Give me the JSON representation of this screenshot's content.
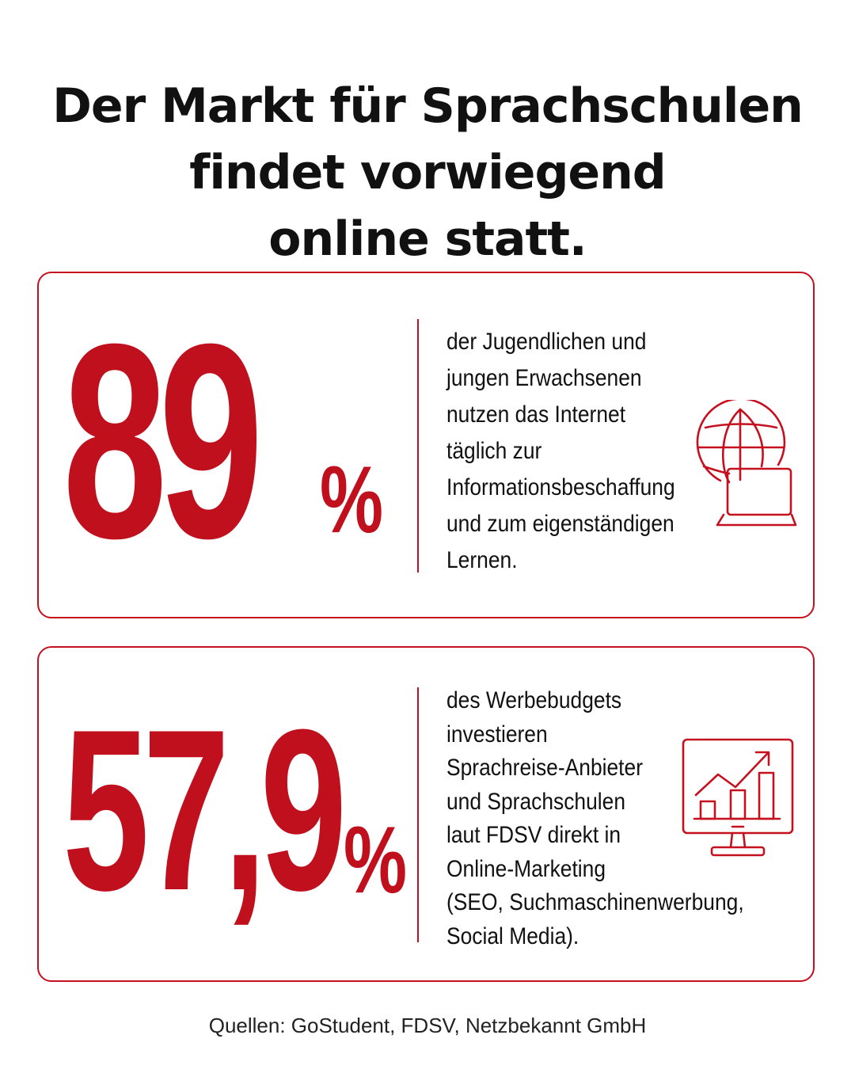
{
  "title": {
    "lines": [
      "Der Markt für Sprachschulen",
      "findet vorwiegend",
      "online statt."
    ]
  },
  "stats": [
    {
      "value": "89",
      "unit": "%",
      "description_lines": [
        "der Jugendlichen und",
        "jungen Erwachsenen",
        "nutzen das Internet",
        "täglich zur",
        "Informationsbeschaffung",
        "und zum eigenständigen",
        "Lernen."
      ],
      "icon": "globe-laptop-icon"
    },
    {
      "value": "57,9",
      "unit": "%",
      "description_lines": [
        "des Werbebudgets",
        "investieren",
        "Sprachreise-Anbieter",
        "und Sprachschulen",
        "laut FDSV direkt in",
        "Online-Marketing",
        "(SEO, Suchmaschinenwerbung,",
        "Social Media)."
      ],
      "icon": "monitor-growth-chart-icon"
    }
  ],
  "source": "Quellen: GoStudent, FDSV, Netzbekannt GmbH",
  "colors": {
    "accent": "#c0101e",
    "text": "#111111",
    "background": "#ffffff"
  }
}
